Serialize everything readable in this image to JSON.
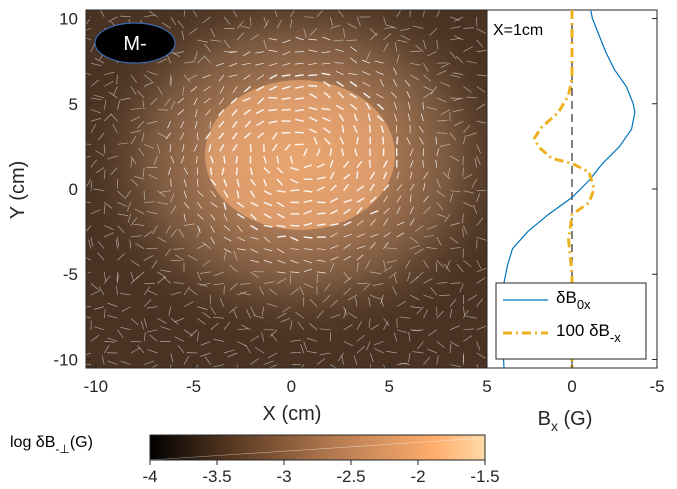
{
  "chart_data": [
    {
      "type": "heatmap",
      "xlabel": "X (cm)",
      "ylabel": "Y (cm)",
      "xlim": [
        -10.5,
        10
      ],
      "ylim": [
        -10.5,
        10.5
      ],
      "xticks": [
        "-10",
        "-5",
        "0",
        "5"
      ],
      "yticks": [
        "10",
        "5",
        "0",
        "-5",
        "-10"
      ],
      "badge": "M-",
      "colorbar": {
        "label": "log δB⊥(G)",
        "label_main": "log δB",
        "label_sub": "-⊥",
        "label_tail": "(G)",
        "min": -4,
        "max": -1.5,
        "ticks": [
          "-4",
          "-3.5",
          "-3",
          "-2.5",
          "-2",
          "-1.5"
        ],
        "colors": [
          "#000000",
          "#5a3a22",
          "#b47a50",
          "#ffae6d",
          "#ffd9a8"
        ]
      },
      "peak": {
        "x": 0.5,
        "y": 2,
        "value": -1.6
      },
      "quiver": "white vector field of δB⊥ swirling around the peak"
    },
    {
      "type": "line",
      "annotation": "X=1cm",
      "xlabel": "Bx (G)",
      "xlabel_main": "B",
      "xlabel_sub": "x",
      "xlabel_tail": " (G)",
      "xlim": [
        5,
        -5
      ],
      "ylim": [
        -10.5,
        10.5
      ],
      "xticks": [
        "5",
        "0",
        "-5"
      ],
      "legend": {
        "placement": "bottom-right"
      },
      "series": [
        {
          "name": "δB0x",
          "name_main": "δB",
          "name_sub": "0x",
          "color": "#0072bd",
          "style": "solid",
          "points": [
            [
              -1.1,
              10.5
            ],
            [
              -1.2,
              10.0
            ],
            [
              -1.6,
              9.0
            ],
            [
              -2.0,
              8.0
            ],
            [
              -2.5,
              7.0
            ],
            [
              -3.2,
              6.0
            ],
            [
              -3.6,
              5.0
            ],
            [
              -3.7,
              4.5
            ],
            [
              -3.5,
              3.5
            ],
            [
              -2.8,
              2.5
            ],
            [
              -1.8,
              1.5
            ],
            [
              -1.0,
              0.5
            ],
            [
              0.0,
              -0.5
            ],
            [
              1.4,
              -1.5
            ],
            [
              2.6,
              -2.5
            ],
            [
              3.5,
              -3.5
            ],
            [
              3.8,
              -4.5
            ],
            [
              4.0,
              -5.5
            ],
            [
              4.1,
              -7.0
            ],
            [
              4.1,
              -8.5
            ],
            [
              4.0,
              -10.5
            ]
          ]
        },
        {
          "name": "100  δB-x",
          "name_main": "100  δB",
          "name_sub": "-x",
          "color": "#edb120",
          "style": "dash-dot",
          "points": [
            [
              0.0,
              10.5
            ],
            [
              0.0,
              8.0
            ],
            [
              0.0,
              6.5
            ],
            [
              0.2,
              5.5
            ],
            [
              0.8,
              4.5
            ],
            [
              1.8,
              3.6
            ],
            [
              2.2,
              3.0
            ],
            [
              2.0,
              2.5
            ],
            [
              1.2,
              1.8
            ],
            [
              0.0,
              1.5
            ],
            [
              -1.0,
              1.0
            ],
            [
              -1.3,
              0.0
            ],
            [
              -1.0,
              -0.8
            ],
            [
              0.0,
              -1.5
            ],
            [
              0.2,
              -3.0
            ],
            [
              0.0,
              -5.0
            ],
            [
              0.0,
              -8.0
            ],
            [
              0.0,
              -10.5
            ]
          ]
        }
      ]
    }
  ]
}
